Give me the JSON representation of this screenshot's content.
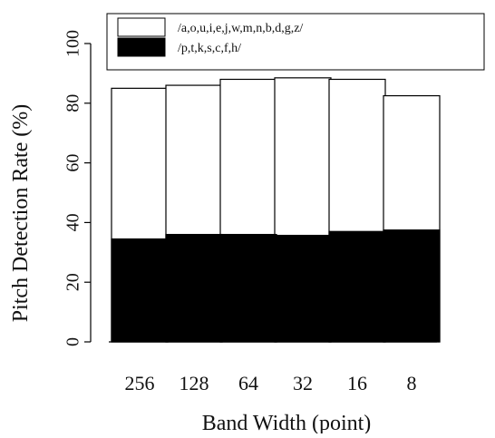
{
  "chart_data": {
    "type": "bar",
    "title": "",
    "xlabel": "Band Width (point)",
    "ylabel": "Pitch Detection Rate (%)",
    "categories": [
      "256",
      "128",
      "64",
      "32",
      "16",
      "8"
    ],
    "ylim": [
      0,
      100
    ],
    "yticks": [
      "0",
      "20",
      "40",
      "60",
      "80",
      "100"
    ],
    "grid": false,
    "legend_position": "top",
    "series": [
      {
        "name": "/a,o,u,i,e,j,w,m,n,b,d,g,z/",
        "values": [
          85,
          86,
          88,
          88.5,
          88,
          82.5
        ],
        "color": "#ffffff"
      },
      {
        "name": "/p,t,k,s,c,f,h/",
        "values": [
          34.5,
          36,
          36,
          35.7,
          37,
          37.5
        ],
        "color": "#000000"
      }
    ]
  }
}
